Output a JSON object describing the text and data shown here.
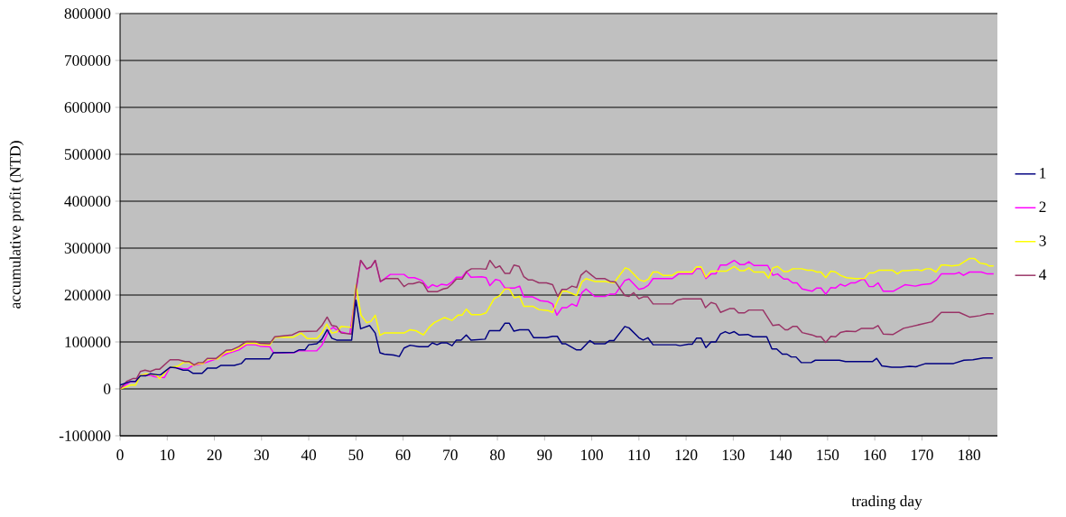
{
  "chart_data": {
    "type": "line",
    "xlabel": "trading day",
    "ylabel": "accumulative profit (NTD)",
    "xlim": [
      0,
      186
    ],
    "xticks": [
      0,
      10,
      20,
      30,
      40,
      50,
      60,
      70,
      80,
      90,
      100,
      110,
      120,
      130,
      140,
      150,
      160,
      170,
      180
    ],
    "ylim": [
      -100000,
      800000
    ],
    "yticks": [
      -100000,
      0,
      100000,
      200000,
      300000,
      400000,
      500000,
      600000,
      700000,
      800000
    ],
    "grid": "y",
    "legend": "right",
    "series": [
      {
        "name": "1",
        "color": "#000080",
        "x": [
          0,
          2.3,
          3.3,
          4.3,
          5.5,
          6.4,
          8.0,
          8.6,
          10.6,
          11.8,
          13.4,
          14.4,
          15.5,
          17.4,
          18.5,
          20.4,
          21.4,
          24.2,
          25.7,
          26.6,
          31.7,
          32.5,
          37,
          37.9,
          39.2,
          40,
          41.7,
          42.8,
          43.9,
          44.9,
          45.9,
          49.1,
          50,
          51,
          52.9,
          54.1,
          55.1,
          56,
          58,
          59.2,
          60.2,
          61.5,
          63.4,
          65.3,
          66.2,
          67.2,
          68.1,
          69.3,
          70.4,
          71.3,
          72.3,
          73.4,
          74.4,
          77.4,
          78.3,
          80.5,
          81.6,
          82.5,
          83.5,
          84.7,
          86.6,
          87.7,
          90.4,
          91.7,
          92.7,
          93.7,
          94.5,
          96.8,
          97.7,
          99.6,
          100.6,
          102.8,
          103.8,
          104.7,
          107,
          107.9,
          110,
          110.9,
          111.9,
          113,
          117.8,
          118.7,
          120.5,
          121.3,
          122.2,
          123.2,
          124.2,
          125.3,
          126.3,
          127.3,
          128.3,
          129.2,
          130.2,
          131.2,
          133.1,
          134.2,
          137.1,
          138.2,
          139.2,
          140.4,
          141.4,
          142.3,
          143.3,
          144.4,
          146.5,
          147.4,
          152.5,
          153.8,
          159.5,
          160.4,
          161.5,
          163.6,
          165.5,
          167.4,
          168.7,
          170.8,
          176.7,
          178.9,
          180.8,
          183,
          185
        ],
        "values": [
          8000,
          16000,
          16000,
          28000,
          28000,
          32000,
          30000,
          30000,
          46000,
          45000,
          40000,
          40000,
          33000,
          33000,
          44000,
          44000,
          50000,
          50000,
          54000,
          64000,
          64000,
          77000,
          78000,
          83000,
          83000,
          94000,
          96000,
          106000,
          126000,
          108000,
          104000,
          104000,
          189000,
          128000,
          135000,
          119000,
          77000,
          74000,
          72000,
          69000,
          87000,
          93000,
          90000,
          90000,
          98000,
          94000,
          98000,
          98000,
          92000,
          104000,
          104000,
          115000,
          104000,
          106000,
          124000,
          124000,
          140000,
          140000,
          123000,
          126000,
          126000,
          109000,
          109000,
          112000,
          112000,
          96000,
          96000,
          83000,
          83000,
          103000,
          96000,
          96000,
          103000,
          103000,
          133000,
          130000,
          109000,
          104000,
          109000,
          94000,
          94000,
          92000,
          95000,
          95000,
          108000,
          108000,
          88000,
          100000,
          100000,
          117000,
          122000,
          118000,
          122000,
          115000,
          116000,
          111000,
          111000,
          85000,
          85000,
          74000,
          74000,
          68000,
          68000,
          56000,
          56000,
          61000,
          61000,
          58000,
          58000,
          65000,
          49000,
          46000,
          46000,
          48000,
          47000,
          54000,
          54000,
          61000,
          62000,
          66000,
          66000
        ]
      },
      {
        "name": "2",
        "color": "#ff00ff",
        "x": [
          0,
          2.3,
          3.3,
          4.3,
          6.4,
          7.3,
          9.4,
          10.6,
          11.8,
          13.4,
          14.4,
          15.5,
          17.6,
          20.4,
          22.7,
          25.2,
          26.8,
          28.7,
          29.7,
          31.7,
          32.5,
          36.7,
          37.9,
          41.7,
          42.8,
          44.3,
          45.2,
          46.5,
          48.7,
          51,
          52.3,
          53.2,
          54.1,
          55.2,
          57.3,
          60.2,
          61.1,
          62.4,
          64,
          65.3,
          66.2,
          67.2,
          68.1,
          69.3,
          70.4,
          71.3,
          72.5,
          73.4,
          74.4,
          76.7,
          77.6,
          78.4,
          79.6,
          80.5,
          81.6,
          83.7,
          84.7,
          85.6,
          87.5,
          89.1,
          90.7,
          91.7,
          92.6,
          93.7,
          94.7,
          95.8,
          96.8,
          97.9,
          98.8,
          100.6,
          102.8,
          103.9,
          105,
          107,
          107.9,
          110,
          111.1,
          112,
          113,
          117.1,
          118.4,
          121.3,
          122.2,
          123.2,
          124.2,
          125.3,
          126.3,
          127.3,
          128.6,
          130.2,
          131.4,
          132.4,
          133.3,
          134.4,
          137.3,
          138.4,
          139.4,
          140.7,
          141.6,
          142.6,
          143.5,
          144.6,
          146.7,
          147.7,
          148.6,
          149.6,
          150.7,
          151.7,
          152.7,
          153.7,
          155,
          155.9,
          157.2,
          157.8,
          158.8,
          159.7,
          160.7,
          161.8,
          163.9,
          166.4,
          168.6,
          169.9,
          171.8,
          173.1,
          174.1,
          176.9,
          177.9,
          178.8,
          180.1,
          182.6,
          183.9,
          185.2
        ],
        "values": [
          0,
          16000,
          16000,
          29000,
          29000,
          26000,
          24000,
          46000,
          45000,
          43000,
          43000,
          50000,
          54000,
          64000,
          75000,
          83000,
          94000,
          94000,
          91000,
          90000,
          77000,
          77000,
          81000,
          81000,
          93000,
          125000,
          131000,
          122000,
          117000,
          274000,
          255000,
          260000,
          274000,
          228000,
          244000,
          244000,
          237000,
          237000,
          231000,
          215000,
          222000,
          218000,
          223000,
          221000,
          228000,
          238000,
          238000,
          250000,
          238000,
          239000,
          237000,
          220000,
          233000,
          231000,
          215000,
          215000,
          219000,
          196000,
          196000,
          188000,
          186000,
          181000,
          157000,
          173000,
          173000,
          181000,
          176000,
          205000,
          213000,
          197000,
          197000,
          202000,
          202000,
          231000,
          234000,
          212000,
          215000,
          221000,
          235000,
          235000,
          245000,
          245000,
          256000,
          256000,
          235000,
          245000,
          245000,
          264000,
          264000,
          274000,
          265000,
          265000,
          271000,
          263000,
          263000,
          242000,
          245000,
          234000,
          234000,
          226000,
          226000,
          213000,
          208000,
          215000,
          215000,
          202000,
          216000,
          215000,
          223000,
          219000,
          226000,
          226000,
          233000,
          233000,
          218000,
          218000,
          226000,
          208000,
          208000,
          222000,
          219000,
          222000,
          224000,
          232000,
          245000,
          245000,
          248000,
          242000,
          249000,
          249000,
          245000,
          245000
        ]
      },
      {
        "name": "3",
        "color": "#ffff00",
        "x": [
          0,
          2.3,
          3.3,
          4.3,
          5.4,
          7.6,
          8.4,
          10.6,
          12.2,
          13.4,
          14.7,
          15.5,
          16.6,
          17.6,
          18.5,
          20.7,
          22.3,
          23.6,
          25.2,
          26.8,
          28.7,
          29.7,
          31.7,
          32.8,
          36.7,
          38.4,
          39.7,
          41.7,
          42.8,
          43.8,
          44.9,
          45.9,
          46.9,
          49.1,
          50,
          51.1,
          52.3,
          53.2,
          54.1,
          55.1,
          56,
          60.2,
          61.5,
          62.7,
          64.3,
          65.5,
          66.6,
          68.8,
          70.4,
          71.6,
          72.5,
          73.4,
          74.5,
          76.4,
          77.6,
          79.3,
          80.5,
          81.6,
          82.5,
          83.6,
          84.7,
          85.6,
          87.5,
          88.8,
          90.7,
          91.7,
          92.8,
          93.7,
          94.7,
          96.8,
          97.9,
          98.8,
          100.6,
          102.8,
          104.7,
          107.1,
          107.9,
          110,
          111.1,
          112,
          113,
          114,
          115.1,
          117.1,
          118.1,
          121.3,
          122.2,
          123.2,
          124.2,
          125.3,
          128.6,
          130.2,
          131.4,
          132.4,
          133.3,
          134.4,
          136.5,
          137.5,
          138.4,
          139.4,
          140.7,
          141.6,
          142.6,
          144.5,
          145.7,
          146.7,
          147.7,
          148.6,
          149.6,
          150.7,
          151.7,
          152.7,
          154,
          155.9,
          157.8,
          158.8,
          159.7,
          160.9,
          163.7,
          164.8,
          165.8,
          166.7,
          169,
          169.9,
          170.9,
          171.8,
          173,
          174.1,
          175,
          176.3,
          177.9,
          179.1,
          180.1,
          181.1,
          182.3,
          183.6,
          184.2,
          185.2
        ],
        "values": [
          0,
          8000,
          8000,
          29000,
          32000,
          30000,
          22000,
          46000,
          48000,
          56000,
          56000,
          50000,
          54000,
          54000,
          64000,
          64000,
          78000,
          80000,
          87000,
          97000,
          97000,
          94000,
          93000,
          110000,
          110000,
          119000,
          107000,
          107000,
          119000,
          138000,
          119000,
          121000,
          133000,
          131000,
          221000,
          157000,
          141000,
          144000,
          157000,
          114000,
          119000,
          119000,
          126000,
          124000,
          115000,
          131000,
          141000,
          152000,
          146000,
          157000,
          157000,
          170000,
          158000,
          158000,
          162000,
          192000,
          199000,
          213000,
          213000,
          194000,
          197000,
          176000,
          176000,
          169000,
          167000,
          163000,
          189000,
          208000,
          208000,
          199000,
          228000,
          235000,
          229000,
          229000,
          226000,
          258000,
          255000,
          233000,
          229000,
          234000,
          249000,
          249000,
          242000,
          242000,
          249000,
          249000,
          260000,
          260000,
          238000,
          251000,
          251000,
          261000,
          252000,
          252000,
          258000,
          249000,
          249000,
          236000,
          258000,
          261000,
          250000,
          250000,
          256000,
          256000,
          253000,
          253000,
          249000,
          249000,
          237000,
          251000,
          249000,
          242000,
          237000,
          235000,
          235000,
          247000,
          247000,
          253000,
          253000,
          245000,
          252000,
          252000,
          254000,
          252000,
          256000,
          256000,
          249000,
          264000,
          264000,
          262000,
          264000,
          272000,
          278000,
          278000,
          268000,
          266000,
          262000,
          262000
        ]
      },
      {
        "name": "4",
        "color": "#993366",
        "x": [
          0,
          1.4,
          2.7,
          3.5,
          4.3,
          5.3,
          6.4,
          7.6,
          8.4,
          10.6,
          12.4,
          13.8,
          14.7,
          15.7,
          16.6,
          17.6,
          18.5,
          20.4,
          22.5,
          23.6,
          25.2,
          26.8,
          28.7,
          29.7,
          31.7,
          32.8,
          36.5,
          37.9,
          41.7,
          42.8,
          43.9,
          44.9,
          45.9,
          46.9,
          49.1,
          50,
          51,
          52.3,
          53.2,
          54.1,
          55.2,
          56.3,
          58.9,
          60.2,
          61.1,
          62.1,
          63.4,
          64.3,
          65.3,
          67.2,
          68.5,
          69.4,
          70.4,
          71.3,
          72.5,
          73.5,
          74.5,
          76.4,
          77.6,
          78.4,
          79.6,
          80.5,
          81.6,
          82.6,
          83.5,
          84.6,
          85.6,
          86.6,
          87.5,
          88.8,
          90.4,
          91.7,
          92.8,
          93.7,
          94.7,
          95.8,
          96.8,
          97.7,
          98.8,
          100,
          100.9,
          102.8,
          103.9,
          105,
          107,
          107.9,
          108.9,
          110,
          110.9,
          111.9,
          113,
          117.1,
          118.1,
          119.4,
          123.2,
          124.1,
          125.3,
          126.3,
          127.3,
          129.2,
          130.2,
          131.1,
          132.4,
          133.3,
          136.3,
          138.4,
          139.7,
          141,
          141.6,
          142.6,
          143.5,
          144.6,
          146.7,
          147.7,
          148.6,
          149.6,
          150.7,
          151.7,
          152.7,
          154,
          155.9,
          157.2,
          159.7,
          160.7,
          161.8,
          163.9,
          166.1,
          169.9,
          172.1,
          174.1,
          177.9,
          180.1,
          182.3,
          183.9,
          185.2
        ],
        "values": [
          0,
          16000,
          22000,
          22000,
          37000,
          40000,
          37000,
          42000,
          42000,
          62000,
          62000,
          58000,
          58000,
          51000,
          56000,
          56000,
          65000,
          65000,
          82000,
          83000,
          90000,
          101000,
          101000,
          97000,
          96000,
          111000,
          115000,
          122000,
          123000,
          135000,
          153000,
          135000,
          133000,
          119000,
          117000,
          212000,
          274000,
          256000,
          260000,
          274000,
          229000,
          235000,
          235000,
          218000,
          224000,
          224000,
          228000,
          224000,
          207000,
          207000,
          213000,
          215000,
          224000,
          234000,
          234000,
          250000,
          256000,
          256000,
          255000,
          274000,
          258000,
          262000,
          246000,
          246000,
          264000,
          261000,
          239000,
          232000,
          232000,
          226000,
          226000,
          222000,
          197000,
          212000,
          212000,
          219000,
          216000,
          242000,
          252000,
          242000,
          235000,
          235000,
          229000,
          228000,
          199000,
          197000,
          205000,
          192000,
          196000,
          196000,
          181000,
          181000,
          189000,
          192000,
          192000,
          173000,
          184000,
          181000,
          163000,
          171000,
          171000,
          162000,
          162000,
          168000,
          168000,
          135000,
          137000,
          126000,
          126000,
          133000,
          133000,
          120000,
          115000,
          111000,
          111000,
          99000,
          112000,
          111000,
          120000,
          123000,
          122000,
          129000,
          129000,
          135000,
          117000,
          116000,
          129000,
          138000,
          143000,
          163000,
          163000,
          153000,
          156000,
          160000,
          160000
        ]
      }
    ]
  }
}
